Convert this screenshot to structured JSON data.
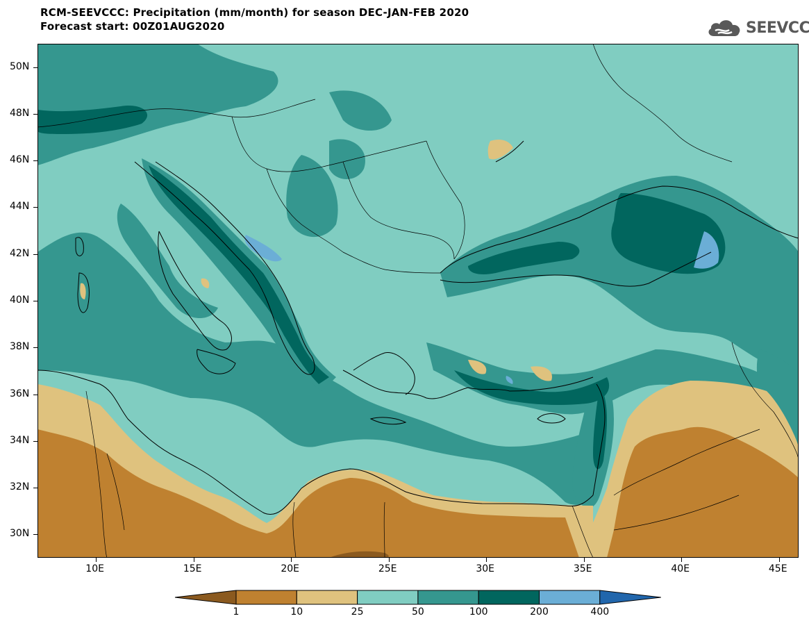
{
  "title": {
    "line1": "RCM-SEEVCCC: Precipitation (mm/month) for season DEC-JAN-FEB 2020",
    "line2": "Forecast start: 00Z01AUG2020"
  },
  "logo": {
    "text": "SEEVCCC",
    "icon": "cloud-icon"
  },
  "map": {
    "type": "filled-contour-map",
    "lat_range": [
      29,
      51
    ],
    "lon_range": [
      7,
      46
    ],
    "lat_ticks": [
      "30N",
      "32N",
      "34N",
      "36N",
      "38N",
      "40N",
      "42N",
      "44N",
      "46N",
      "48N",
      "50N"
    ],
    "lon_ticks": [
      "10E",
      "15E",
      "20E",
      "25E",
      "30E",
      "35E",
      "40E",
      "45E"
    ],
    "lat_values": [
      30,
      32,
      34,
      36,
      38,
      40,
      42,
      44,
      46,
      48,
      50
    ],
    "lon_values": [
      10,
      15,
      20,
      25,
      30,
      35,
      40,
      45
    ]
  },
  "colorbar": {
    "labels": [
      "1",
      "10",
      "25",
      "50",
      "100",
      "200",
      "400"
    ],
    "colors": [
      "#8b5a1f",
      "#bf8130",
      "#dfc27e",
      "#80cdc1",
      "#35978f",
      "#01665e",
      "#6baed6",
      "#2166ac"
    ]
  }
}
